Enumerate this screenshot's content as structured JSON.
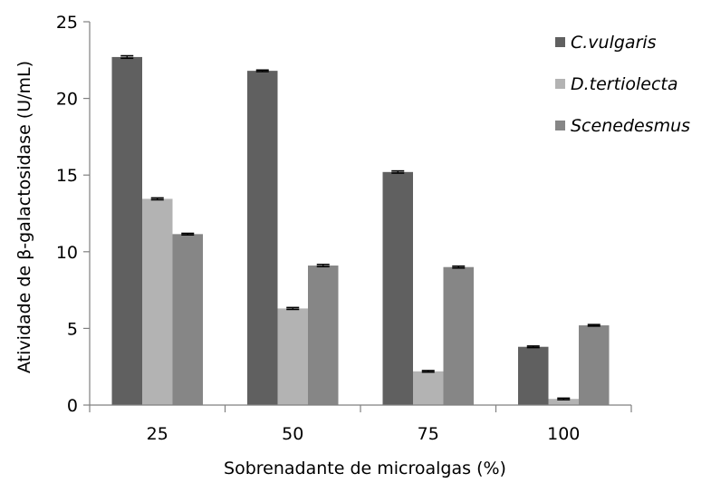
{
  "chart_data": {
    "type": "bar",
    "xlabel": "Sobrenadante de microalgas (%)",
    "ylabel": "Atividade de β-galactosidase  (U/mL)",
    "categories": [
      "25",
      "50",
      "75",
      "100"
    ],
    "ylim": [
      0,
      25
    ],
    "yticks": [
      0,
      5,
      10,
      15,
      20,
      25
    ],
    "grid": false,
    "legend_position": "top-right",
    "series": [
      {
        "name": "C.vulgaris",
        "color": "#606060",
        "values": [
          22.7,
          21.8,
          15.2,
          3.8
        ],
        "errors": [
          0.08,
          0.05,
          0.07,
          0.05
        ]
      },
      {
        "name": "D.tertiolecta",
        "color": "#b3b3b3",
        "values": [
          13.45,
          6.3,
          2.2,
          0.4
        ],
        "errors": [
          0.06,
          0.06,
          0.05,
          0.05
        ]
      },
      {
        "name": "Scenedesmus",
        "color": "#868686",
        "values": [
          11.15,
          9.1,
          9.0,
          5.2
        ],
        "errors": [
          0.05,
          0.07,
          0.06,
          0.05
        ]
      }
    ]
  }
}
